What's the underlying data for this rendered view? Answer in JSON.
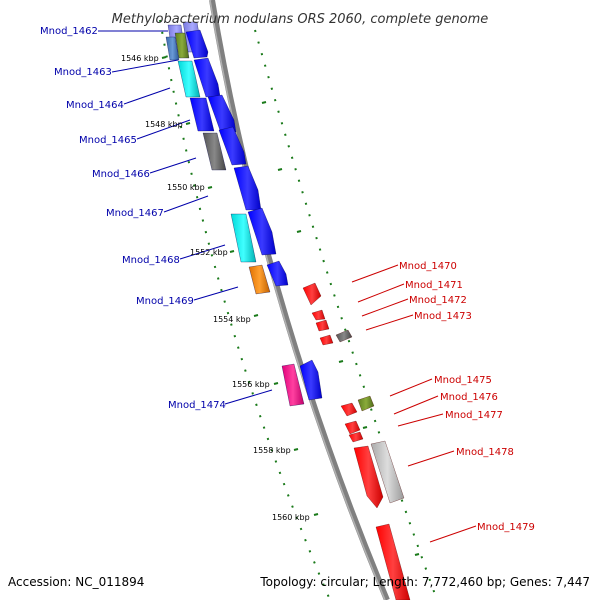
{
  "title": "Methylobacterium nodulans ORS 2060, complete genome",
  "footer": {
    "accession": "Accession: NC_011894",
    "summary": "Topology: circular; Length: 7,772,460 bp; Genes: 7,447"
  },
  "colors": {
    "forward_label": "#0000aa",
    "reverse_label": "#cc0000",
    "tick": "#1a7a1a",
    "backbone": "#888888"
  },
  "kbp_labels": [
    "1546 kbp",
    "1548 kbp",
    "1550 kbp",
    "1552 kbp",
    "1554 kbp",
    "1556 kbp",
    "1558 kbp",
    "1560 kbp"
  ],
  "forward_genes": [
    "Mnod_1462",
    "Mnod_1463",
    "Mnod_1464",
    "Mnod_1465",
    "Mnod_1466",
    "Mnod_1467",
    "Mnod_1468",
    "Mnod_1469",
    "Mnod_1474"
  ],
  "reverse_genes": [
    "Mnod_1470",
    "Mnod_1471",
    "Mnod_1472",
    "Mnod_1473",
    "Mnod_1475",
    "Mnod_1476",
    "Mnod_1477",
    "Mnod_1478",
    "Mnod_1479"
  ]
}
